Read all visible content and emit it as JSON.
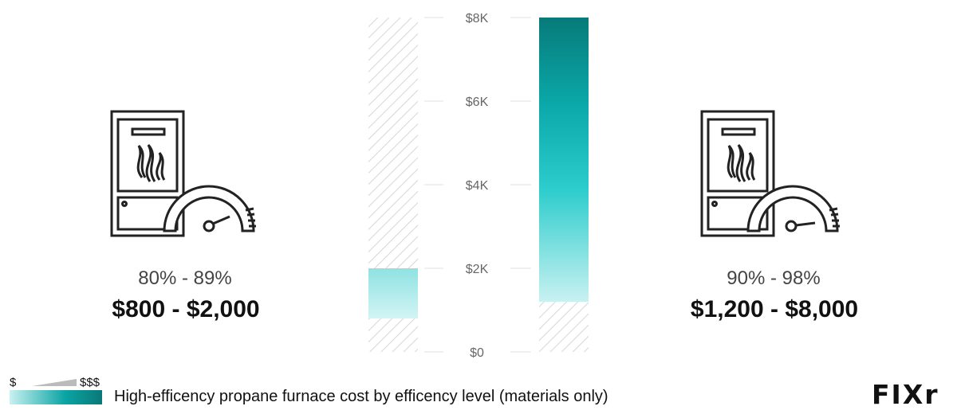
{
  "chart_data": {
    "type": "range-bar",
    "y_ticks": [
      "$0",
      "$2K",
      "$4K",
      "$6K",
      "$8K"
    ],
    "ylim": [
      0,
      8000
    ],
    "grid": true,
    "bars": [
      {
        "efficiency": "80% - 89%",
        "cost_label": "$800 - $2,000",
        "low": 800,
        "high": 2000
      },
      {
        "efficiency": "90% - 98%",
        "cost_label": "$1,200 - $8,000",
        "low": 1200,
        "high": 8000
      }
    ]
  },
  "legend": {
    "low": "$",
    "high": "$$$"
  },
  "caption": "High-efficency propane furnace cost by efficency level (materials only)",
  "logo": "FIXr",
  "colors": {
    "bar_top": "#087a7a",
    "bar_mid": "#2bcaca",
    "bar_low": "#c4f0f0",
    "hatch": "#d6d6d6",
    "grid": "#e2e2e2"
  },
  "icons": [
    "furnace-icon",
    "gauge-icon"
  ]
}
